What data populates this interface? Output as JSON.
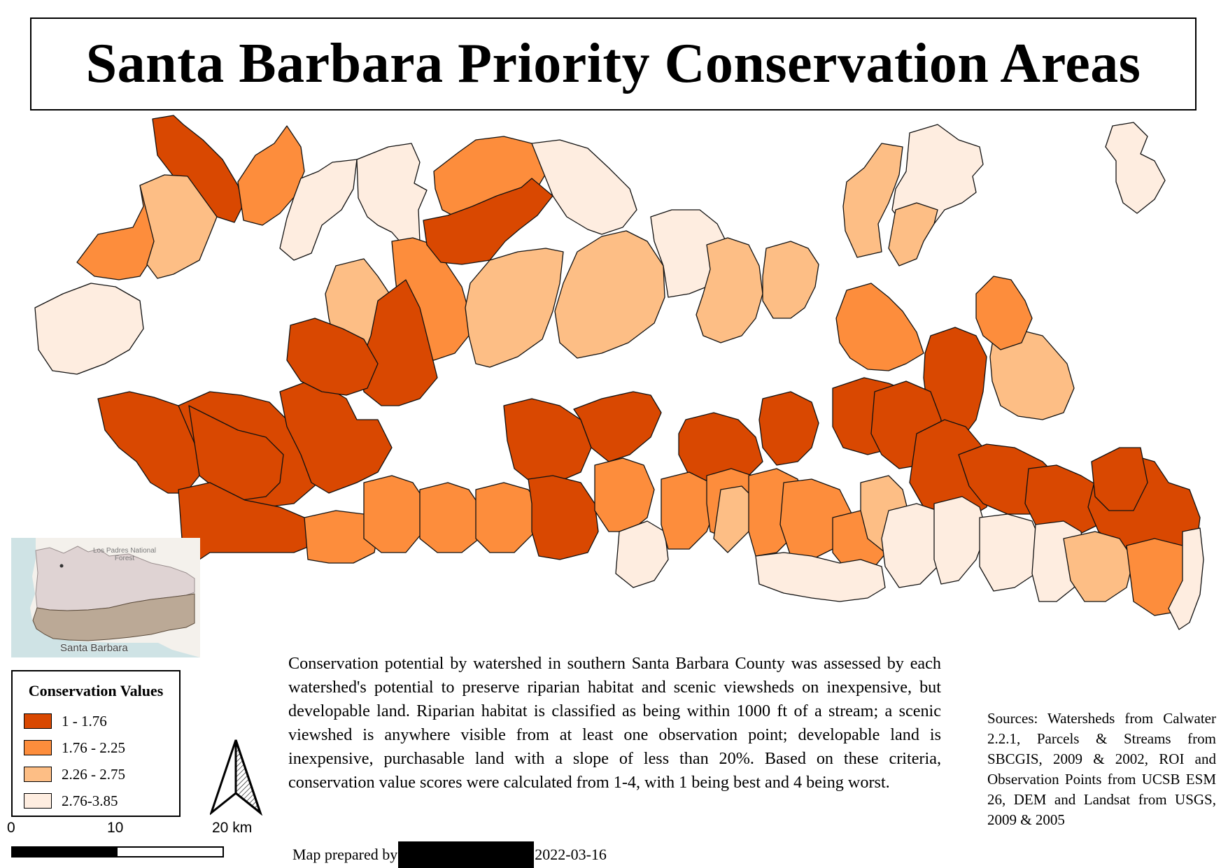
{
  "title": "Santa Barbara Priority Conservation Areas",
  "legend": {
    "title": "Conservation Values",
    "classes": [
      {
        "label": "1 - 1.76",
        "color": "#d94801"
      },
      {
        "label": "1.76 - 2.25",
        "color": "#fd8d3c"
      },
      {
        "label": "2.26 - 2.75",
        "color": "#fdbe85"
      },
      {
        "label": "2.76-3.85",
        "color": "#feede0"
      }
    ]
  },
  "colors": {
    "c1": "#d94801",
    "c2": "#fd8d3c",
    "c3": "#fdbe85",
    "c4": "#feede0",
    "outline": "#111111",
    "inset_ocean": "#cfe3e5",
    "inset_land": "#f4f1ec",
    "inset_forest": "#dfd3d3",
    "inset_study_area": "#bba996"
  },
  "inset": {
    "forest_label": "Los Padres National Forest",
    "city_label": "Santa Barbara"
  },
  "scalebar": {
    "ticks": [
      "0",
      "10",
      "20 km"
    ]
  },
  "north_arrow": {
    "icon": "north-arrow-icon"
  },
  "description": "Conservation potential by watershed in southern Santa Barbara County was assessed by each watershed's potential to preserve riparian habitat and scenic viewsheds on inexpensive, but developable land. Riparian habitat is classified as being within 1000 ft of a stream; a scenic viewshed is anywhere visible from at least one observation point; developable land is inexpensive, purchasable land with a slope of less than 20%. Based on these criteria, conservation value scores were calculated from 1-4, with 1 being best and 4 being worst.",
  "prepared": {
    "prefix": "Map prepared by",
    "date": "2022-03-16"
  },
  "sources": "Sources: Watersheds from Calwater 2.2.1, Parcels & Streams from SBCGIS, 2009 & 2002, ROI and Observation Points from UCSB ESM 26, DEM and Landsat from USGS, 2009 & 2005"
}
